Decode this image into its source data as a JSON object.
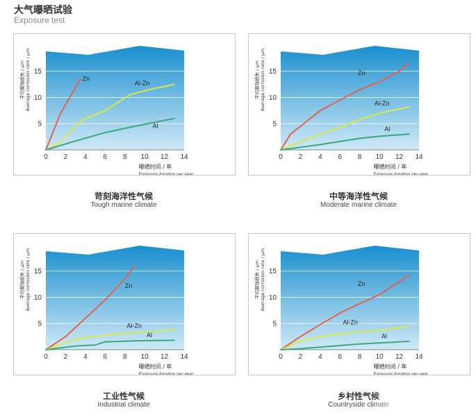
{
  "header": {
    "title": "大气曝晒试验",
    "subtitle": "Exposure test"
  },
  "colors": {
    "sky_top": "#1a8fcf",
    "sky_bottom": "#cfe9f6",
    "zn": "#e2624e",
    "al_zn": "#d8e84a",
    "al": "#3aa77c"
  },
  "chart_data": [
    {
      "type": "line",
      "caption_cn": "苛刻海洋性气候",
      "caption_en": "Tough marine climate",
      "xlabel_cn": "曝晒时间 / 年",
      "xlabel_en": "Exposure duration per year",
      "ylabel_cn": "平均腐蚀损失 / μm",
      "ylabel_en": "Average corrosion rate / μm",
      "xlim": [
        0,
        14
      ],
      "ylim": [
        0,
        18
      ],
      "x_ticks": [
        0,
        2,
        4,
        6,
        8,
        10,
        12,
        14
      ],
      "y_ticks": [
        5,
        10,
        15
      ],
      "series": [
        {
          "name": "Zn",
          "x": [
            0,
            1.5,
            3.5
          ],
          "y": [
            0,
            7,
            13.5
          ]
        },
        {
          "name": "Al-Zn",
          "x": [
            0,
            1.5,
            3.5,
            6,
            8.5,
            10.5,
            13
          ],
          "y": [
            0,
            1.5,
            5.5,
            7.5,
            10.5,
            11.5,
            12.5
          ]
        },
        {
          "name": "Al",
          "x": [
            0,
            3,
            6,
            9,
            13
          ],
          "y": [
            0,
            1.7,
            3.3,
            4.5,
            6
          ]
        }
      ]
    },
    {
      "type": "line",
      "caption_cn": "中等海洋性气候",
      "caption_en": "Moderate marine climate",
      "xlabel_cn": "曝晒时间 / 年",
      "xlabel_en": "Exposure duration per year",
      "ylabel_cn": "平均腐蚀损失 / μm",
      "ylabel_en": "Average corrosion rate / μm",
      "xlim": [
        0,
        14
      ],
      "ylim": [
        0,
        18
      ],
      "x_ticks": [
        0,
        2,
        4,
        6,
        8,
        10,
        12,
        14
      ],
      "y_ticks": [
        5,
        10,
        15
      ],
      "series": [
        {
          "name": "Zn",
          "x": [
            0,
            1,
            2,
            4,
            6,
            8,
            10,
            12,
            13
          ],
          "y": [
            0,
            3,
            4.5,
            7.5,
            9.5,
            11.5,
            13,
            15,
            16.5
          ]
        },
        {
          "name": "Al-Zn",
          "x": [
            0,
            2,
            4,
            6,
            8,
            10,
            12,
            13
          ],
          "y": [
            0,
            1.5,
            3,
            4.3,
            5.8,
            7,
            7.8,
            8.2
          ]
        },
        {
          "name": "Al",
          "x": [
            0,
            2,
            4,
            6,
            8,
            10,
            13
          ],
          "y": [
            0,
            0.5,
            1,
            1.6,
            2.2,
            2.6,
            3
          ]
        }
      ]
    },
    {
      "type": "line",
      "caption_cn": "工业性气候",
      "caption_en": "Industrial climate",
      "xlabel_cn": "曝晒时间 / 年",
      "xlabel_en": "Exposure duration per year",
      "ylabel_cn": "平均腐蚀损失 / μm",
      "ylabel_en": "Average corrosion rate / μm",
      "xlim": [
        0,
        14
      ],
      "ylim": [
        0,
        18
      ],
      "x_ticks": [
        0,
        2,
        4,
        6,
        8,
        10,
        12,
        14
      ],
      "y_ticks": [
        5,
        10,
        15
      ],
      "series": [
        {
          "name": "Zn",
          "x": [
            0,
            2,
            4,
            6,
            8,
            9
          ],
          "y": [
            0,
            2.5,
            6,
            9.5,
            13.5,
            16
          ]
        },
        {
          "name": "Al-Zn",
          "x": [
            0,
            3,
            6,
            9,
            12,
            13
          ],
          "y": [
            0,
            2,
            2.8,
            3.2,
            3.7,
            3.8
          ]
        },
        {
          "name": "Al",
          "x": [
            0,
            3,
            5,
            6,
            9,
            13
          ],
          "y": [
            0,
            0.7,
            0.9,
            1.5,
            1.7,
            1.8
          ]
        }
      ]
    },
    {
      "type": "line",
      "caption_cn": "乡村性气候",
      "caption_en": "Countryside climate",
      "xlabel_cn": "曝晒时间 / 年",
      "xlabel_en": "Exposure duration per year",
      "ylabel_cn": "平均腐蚀损失 / μm",
      "ylabel_en": "Average corrosion rate / μm",
      "xlim": [
        0,
        14
      ],
      "ylim": [
        0,
        18
      ],
      "x_ticks": [
        0,
        2,
        4,
        6,
        8,
        10,
        12,
        14
      ],
      "y_ticks": [
        5,
        10,
        15
      ],
      "series": [
        {
          "name": "Zn",
          "x": [
            0,
            2,
            4,
            6,
            8,
            10,
            12,
            13
          ],
          "y": [
            0,
            2.5,
            4.8,
            7,
            8.8,
            10.5,
            13,
            14.3
          ]
        },
        {
          "name": "Al-Zn",
          "x": [
            0,
            2,
            4,
            6,
            8,
            10,
            12,
            13
          ],
          "y": [
            0,
            1.6,
            2.5,
            3,
            3.4,
            3.7,
            4.2,
            4.5
          ]
        },
        {
          "name": "Al",
          "x": [
            0,
            2,
            4,
            6,
            8,
            10,
            12,
            13
          ],
          "y": [
            0,
            0.2,
            0.5,
            0.8,
            1.1,
            1.3,
            1.5,
            1.6
          ]
        }
      ]
    }
  ]
}
